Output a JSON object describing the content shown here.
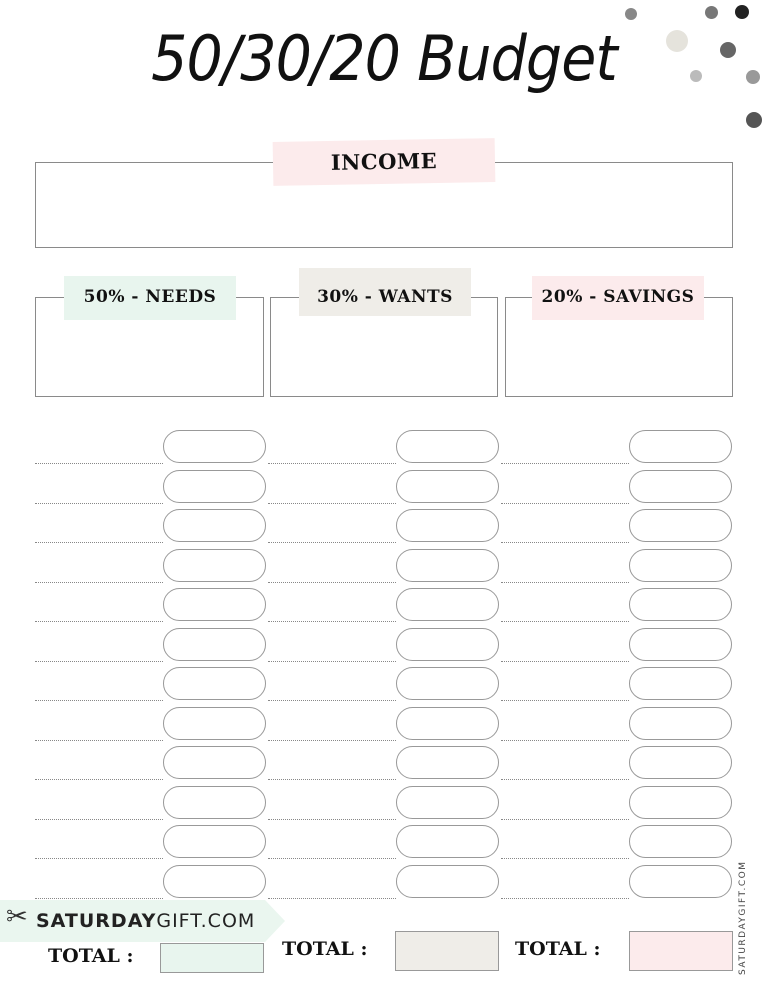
{
  "title": "50/30/20 Budget",
  "income": {
    "label": "INCOME",
    "value": ""
  },
  "categories": [
    {
      "label": "50% - NEEDS",
      "color": "#e8f5ee",
      "total_label": "TOTAL :"
    },
    {
      "label": "30% - WANTS",
      "color": "#efede8",
      "total_label": "TOTAL :"
    },
    {
      "label": "20% - SAVINGS",
      "color": "#fcebec",
      "total_label": "TOTAL :"
    }
  ],
  "rows_per_category": 12,
  "branding": {
    "logo_text_bold": "SATURDAY",
    "logo_text_light": "GIFT.COM",
    "vertical_text": "SATURDAYGIFT.COM",
    "logo_icon": "scissors-icon"
  }
}
